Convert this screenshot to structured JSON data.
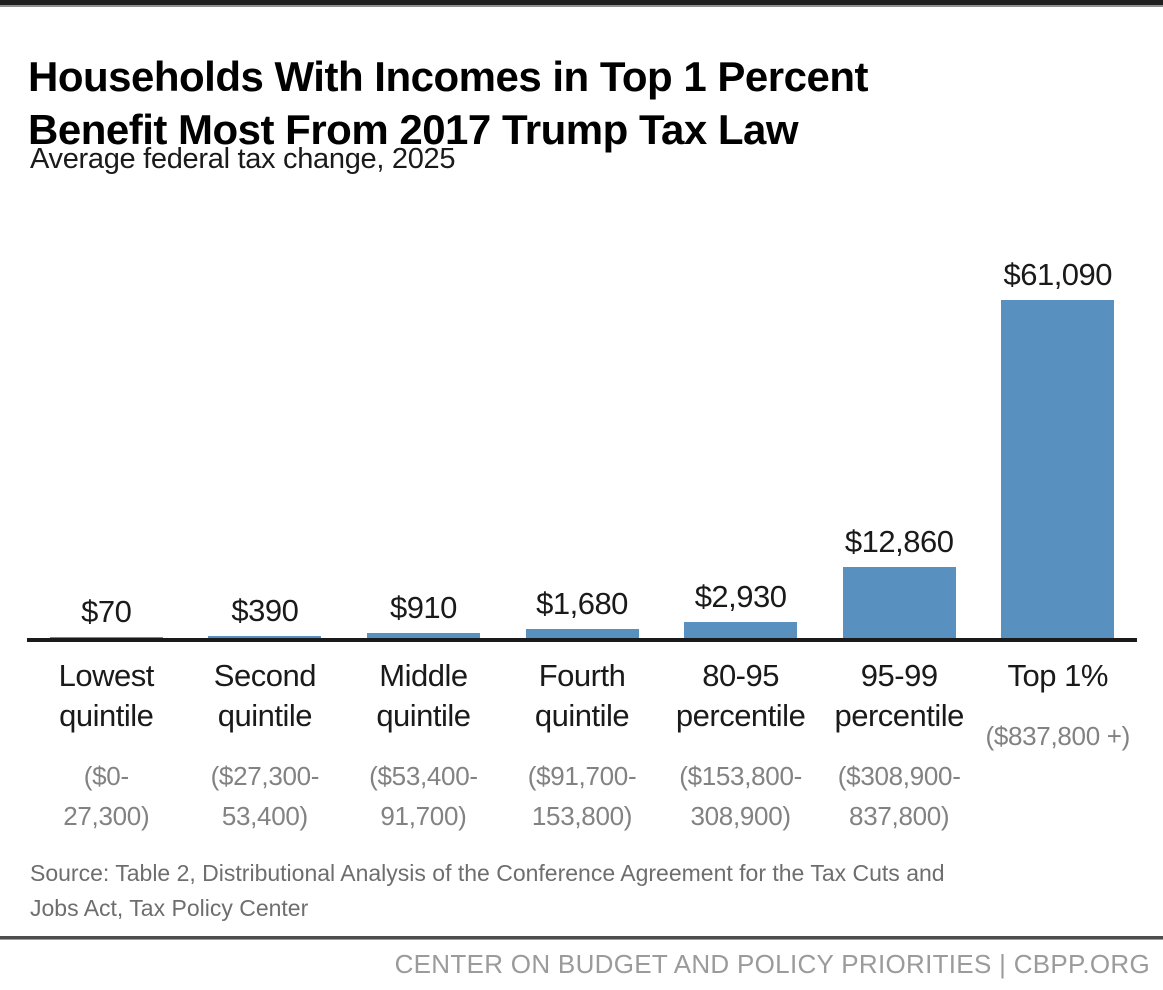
{
  "header": {
    "title_display": "Households With Incomes in Top 1 Percent\nBenefit Most From 2017 Trump Tax Law",
    "subtitle": "Average federal tax change, 2025"
  },
  "chart_data": {
    "type": "bar",
    "title": "Households With Incomes in Top 1 Percent Benefit Most From 2017 Trump Tax Law",
    "subtitle": "Average federal tax change, 2025",
    "categories": [
      "Lowest quintile",
      "Second quintile",
      "Middle quintile",
      "Fourth quintile",
      "80-95 percentile",
      "95-99 percentile",
      "Top 1%"
    ],
    "category_display": [
      "Lowest\nquintile",
      "Second\nquintile",
      "Middle\nquintile",
      "Fourth\nquintile",
      "80-95\npercentile",
      "95-99\npercentile",
      "Top 1%"
    ],
    "income_ranges": [
      "($0-27,300)",
      "($27,300-53,400)",
      "($53,400-91,700)",
      "($91,700-153,800)",
      "($153,800-308,900)",
      "($308,900-837,800)",
      "($837,800 +)"
    ],
    "income_range_display": [
      "($0-\n27,300)",
      "($27,300-\n53,400)",
      "($53,400-\n91,700)",
      "($91,700-\n153,800)",
      "($153,800-\n308,900)",
      "($308,900-\n837,800)",
      "($837,800 +)"
    ],
    "values": [
      70,
      390,
      910,
      1680,
      2930,
      12860,
      61090
    ],
    "value_labels": [
      "$70",
      "$390",
      "$910",
      "$1,680",
      "$2,930",
      "$12,860",
      "$61,090"
    ],
    "xlabel": "",
    "ylabel": "",
    "ylim": [
      0,
      61090
    ],
    "grid": false,
    "legend": false,
    "bar_color": "#5890c0",
    "axis_color": "#1a1a1a"
  },
  "footer": {
    "source_display": "Source: Table 2, Distributional Analysis of the Conference Agreement for the Tax Cuts and\nJobs Act, Tax Policy Center",
    "brand": "CENTER ON BUDGET AND POLICY PRIORITIES | CBPP.ORG"
  }
}
